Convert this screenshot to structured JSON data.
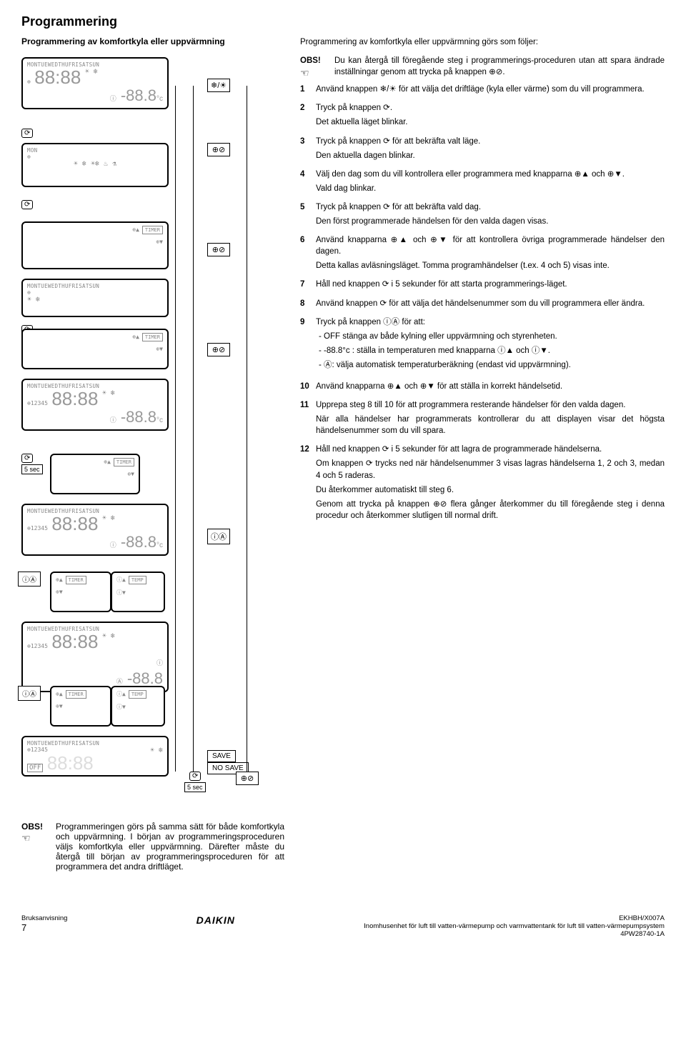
{
  "title": "Programmering",
  "subheading": "Programmering av komfortkyla eller uppvärmning",
  "intro": "Programmering av komfortkyla eller uppvärmning görs som följer:",
  "obs_label": "OBS!",
  "obs_text": "Du kan återgå till föregående steg i programmerings-proceduren utan att spara ändrade inställningar genom att trycka på knappen ⊕⊘.",
  "steps": [
    {
      "n": "1",
      "t": "Använd knappen ❄/☀ för att välja det driftläge (kyla eller värme) som du vill programmera."
    },
    {
      "n": "2",
      "t": "Tryck på knappen ⟳.",
      "extra": "Det aktuella läget blinkar."
    },
    {
      "n": "3",
      "t": "Tryck på knappen ⟳ för att bekräfta valt läge.",
      "extra": "Den aktuella dagen blinkar."
    },
    {
      "n": "4",
      "t": "Välj den dag som du vill kontrollera eller programmera med knapparna ⊕▲ och ⊕▼.",
      "extra": "Vald dag blinkar."
    },
    {
      "n": "5",
      "t": "Tryck på knappen ⟳ för att bekräfta vald dag.",
      "extra": "Den först programmerade händelsen för den valda dagen visas."
    },
    {
      "n": "6",
      "t": "Använd knapparna ⊕▲ och ⊕▼ för att kontrollera övriga programmerade händelser den dagen.",
      "extra": "Detta kallas avläsningsläget. Tomma programhändelser (t.ex. 4 och 5) visas inte."
    },
    {
      "n": "7",
      "t": "Håll ned knappen ⟳ i 5 sekunder för att starta programmerings-läget."
    },
    {
      "n": "8",
      "t": "Använd knappen ⟳ för att välja det händelsenummer som du vill programmera eller ändra."
    },
    {
      "n": "9",
      "t": "Tryck på knappen ⓘⒶ för att:",
      "sub": [
        "OFF stänga av både kylning eller uppvärmning och styrenheten.",
        "-88.8°c : ställa in temperaturen med knapparna ⓘ▲ och ⓘ▼.",
        "Ⓐ: välja automatisk temperaturberäkning (endast vid uppvärmning)."
      ]
    },
    {
      "n": "10",
      "t": "Använd knapparna ⊕▲ och ⊕▼ för att ställa in korrekt händelsetid."
    },
    {
      "n": "11",
      "t": "Upprepa steg 8 till 10 för att programmera resterande händelser för den valda dagen.",
      "extra": "När alla händelser har programmerats kontrollerar du att displayen visar det högsta händelsenummer som du vill spara."
    },
    {
      "n": "12",
      "t": "Håll ned knappen ⟳ i 5 sekunder för att lagra de programmerade händelserna.",
      "extra": "Om knappen ⟳ trycks ned när händelsenummer 3 visas lagras händelserna 1, 2 och 3, medan 4 och 5 raderas.",
      "extra2": "Du återkommer automatiskt till steg 6.",
      "extra3": "Genom att trycka på knappen ⊕⊘ flera gånger återkommer du till föregående steg i denna procedur och återkommer slutligen till normal drift."
    }
  ],
  "panels": {
    "days_full": "MONTUEWEDTHUFRISATSUN",
    "day_single": "MON",
    "big_time": "88:88",
    "temp_neg": "-88.8",
    "temp_unit": "°c",
    "prog12345": "12345",
    "off": "OFF",
    "timer_label": "TIMER",
    "temp_label": "TEMP"
  },
  "save": "SAVE",
  "nosave": "NO SAVE",
  "five_sec": "5 sec",
  "bottom_note": "Programmeringen görs på samma sätt för både komfortkyla och uppvärmning. I början av programmeringsproceduren väljs komfortkyla eller uppvärmning. Därefter måste du återgå till början av programmeringsproceduren för att programmera det andra driftläget.",
  "footer": {
    "left1": "Bruksanvisning",
    "left2": "7",
    "brand": "DAIKIN",
    "right1": "EKHBH/X007A",
    "right2": "Inomhusenhet för luft till vatten-värmepump och varmvattentank för luft till vatten-värmepumpsystem",
    "right3": "4PW28740-1A"
  }
}
